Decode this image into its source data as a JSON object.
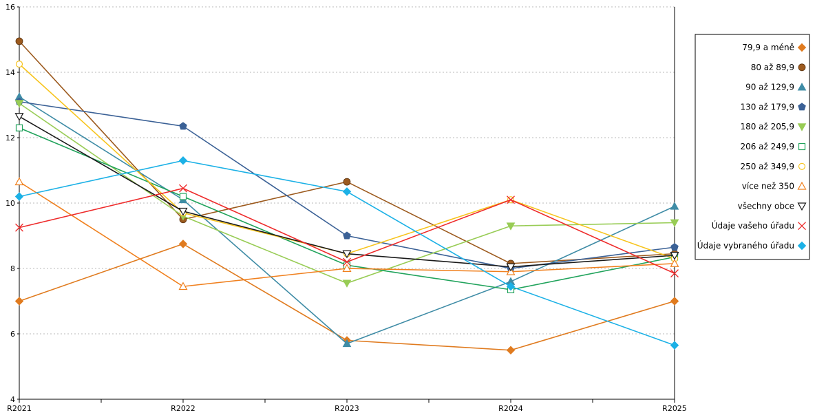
{
  "chart_data": {
    "type": "line",
    "title": "",
    "xlabel": "",
    "ylabel": "",
    "categories": [
      "R2021",
      "R2022",
      "R2023",
      "R2024",
      "R2025"
    ],
    "ylim": [
      4,
      16
    ],
    "yticks": [
      4,
      6,
      8,
      10,
      12,
      14,
      16
    ],
    "grid": "horizontal dotted",
    "legend_position": "right",
    "series": [
      {
        "name": "79,9 a méně",
        "color": "#e07b1f",
        "marker": "diamond-filled",
        "values": [
          7.0,
          8.75,
          5.8,
          5.5,
          7.0
        ]
      },
      {
        "name": "80 až 89,9",
        "color": "#9c5a1e",
        "marker": "circle-filled",
        "values": [
          14.95,
          9.5,
          10.65,
          8.15,
          8.45
        ]
      },
      {
        "name": "90 až 129,9",
        "color": "#3f8ca6",
        "marker": "triangle-filled",
        "values": [
          13.25,
          10.1,
          5.7,
          7.6,
          9.9
        ]
      },
      {
        "name": "130 až 179,9",
        "color": "#3b6196",
        "marker": "pentagon-filled",
        "values": [
          13.1,
          12.35,
          9.0,
          8.0,
          8.65
        ]
      },
      {
        "name": "180 až 205,9",
        "color": "#98cc55",
        "marker": "triangle-down-filled",
        "values": [
          13.05,
          9.6,
          7.55,
          9.3,
          9.4
        ]
      },
      {
        "name": "206 až 249,9",
        "color": "#21a35c",
        "marker": "square-open",
        "values": [
          12.3,
          10.2,
          8.1,
          7.35,
          8.35
        ]
      },
      {
        "name": "250 až 349,9",
        "color": "#f7c41d",
        "marker": "circle-open",
        "values": [
          14.25,
          9.7,
          8.45,
          10.1,
          8.3
        ]
      },
      {
        "name": "více než 350",
        "color": "#f0801e",
        "marker": "triangle-open",
        "values": [
          10.65,
          7.45,
          8.0,
          7.9,
          8.15
        ]
      },
      {
        "name": "všechny obce",
        "color": "#1a1a1a",
        "marker": "triangle-down-open",
        "values": [
          12.65,
          9.75,
          8.45,
          8.05,
          8.4
        ]
      },
      {
        "name": "Údaje vašeho úřadu",
        "color": "#ee2b2b",
        "marker": "x",
        "values": [
          9.25,
          10.45,
          8.2,
          10.1,
          7.85
        ]
      },
      {
        "name": "Údaje vybraného úřadu",
        "color": "#1cb1e6",
        "marker": "diamond-filled",
        "values": [
          10.2,
          11.3,
          10.35,
          7.45,
          5.65
        ]
      }
    ]
  }
}
